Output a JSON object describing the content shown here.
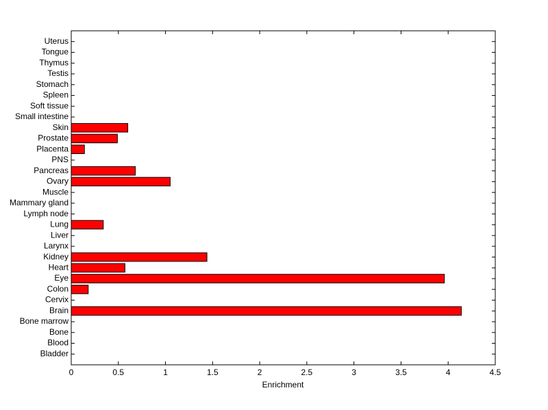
{
  "chart_data": {
    "type": "barh",
    "xlabel": "Enrichment",
    "categories": [
      "Bladder",
      "Blood",
      "Bone",
      "Bone marrow",
      "Brain",
      "Cervix",
      "Colon",
      "Eye",
      "Heart",
      "Kidney",
      "Larynx",
      "Liver",
      "Lung",
      "Lymph node",
      "Mammary gland",
      "Muscle",
      "Ovary",
      "Pancreas",
      "PNS",
      "Placenta",
      "Prostate",
      "Skin",
      "Small intestine",
      "Soft tissue",
      "Spleen",
      "Stomach",
      "Testis",
      "Thymus",
      "Tongue",
      "Uterus"
    ],
    "values": [
      0,
      0,
      0,
      0,
      4.14,
      0,
      0.18,
      3.96,
      0.57,
      1.44,
      0,
      0,
      0.34,
      0,
      0,
      0,
      1.05,
      0.68,
      0,
      0.14,
      0.49,
      0.6,
      0,
      0,
      0,
      0,
      0,
      0,
      0,
      0
    ],
    "color": "#ff0000",
    "xlim": [
      0,
      4.5
    ],
    "xticks": [
      0,
      0.5,
      1,
      1.5,
      2,
      2.5,
      3,
      3.5,
      4,
      4.5
    ]
  }
}
